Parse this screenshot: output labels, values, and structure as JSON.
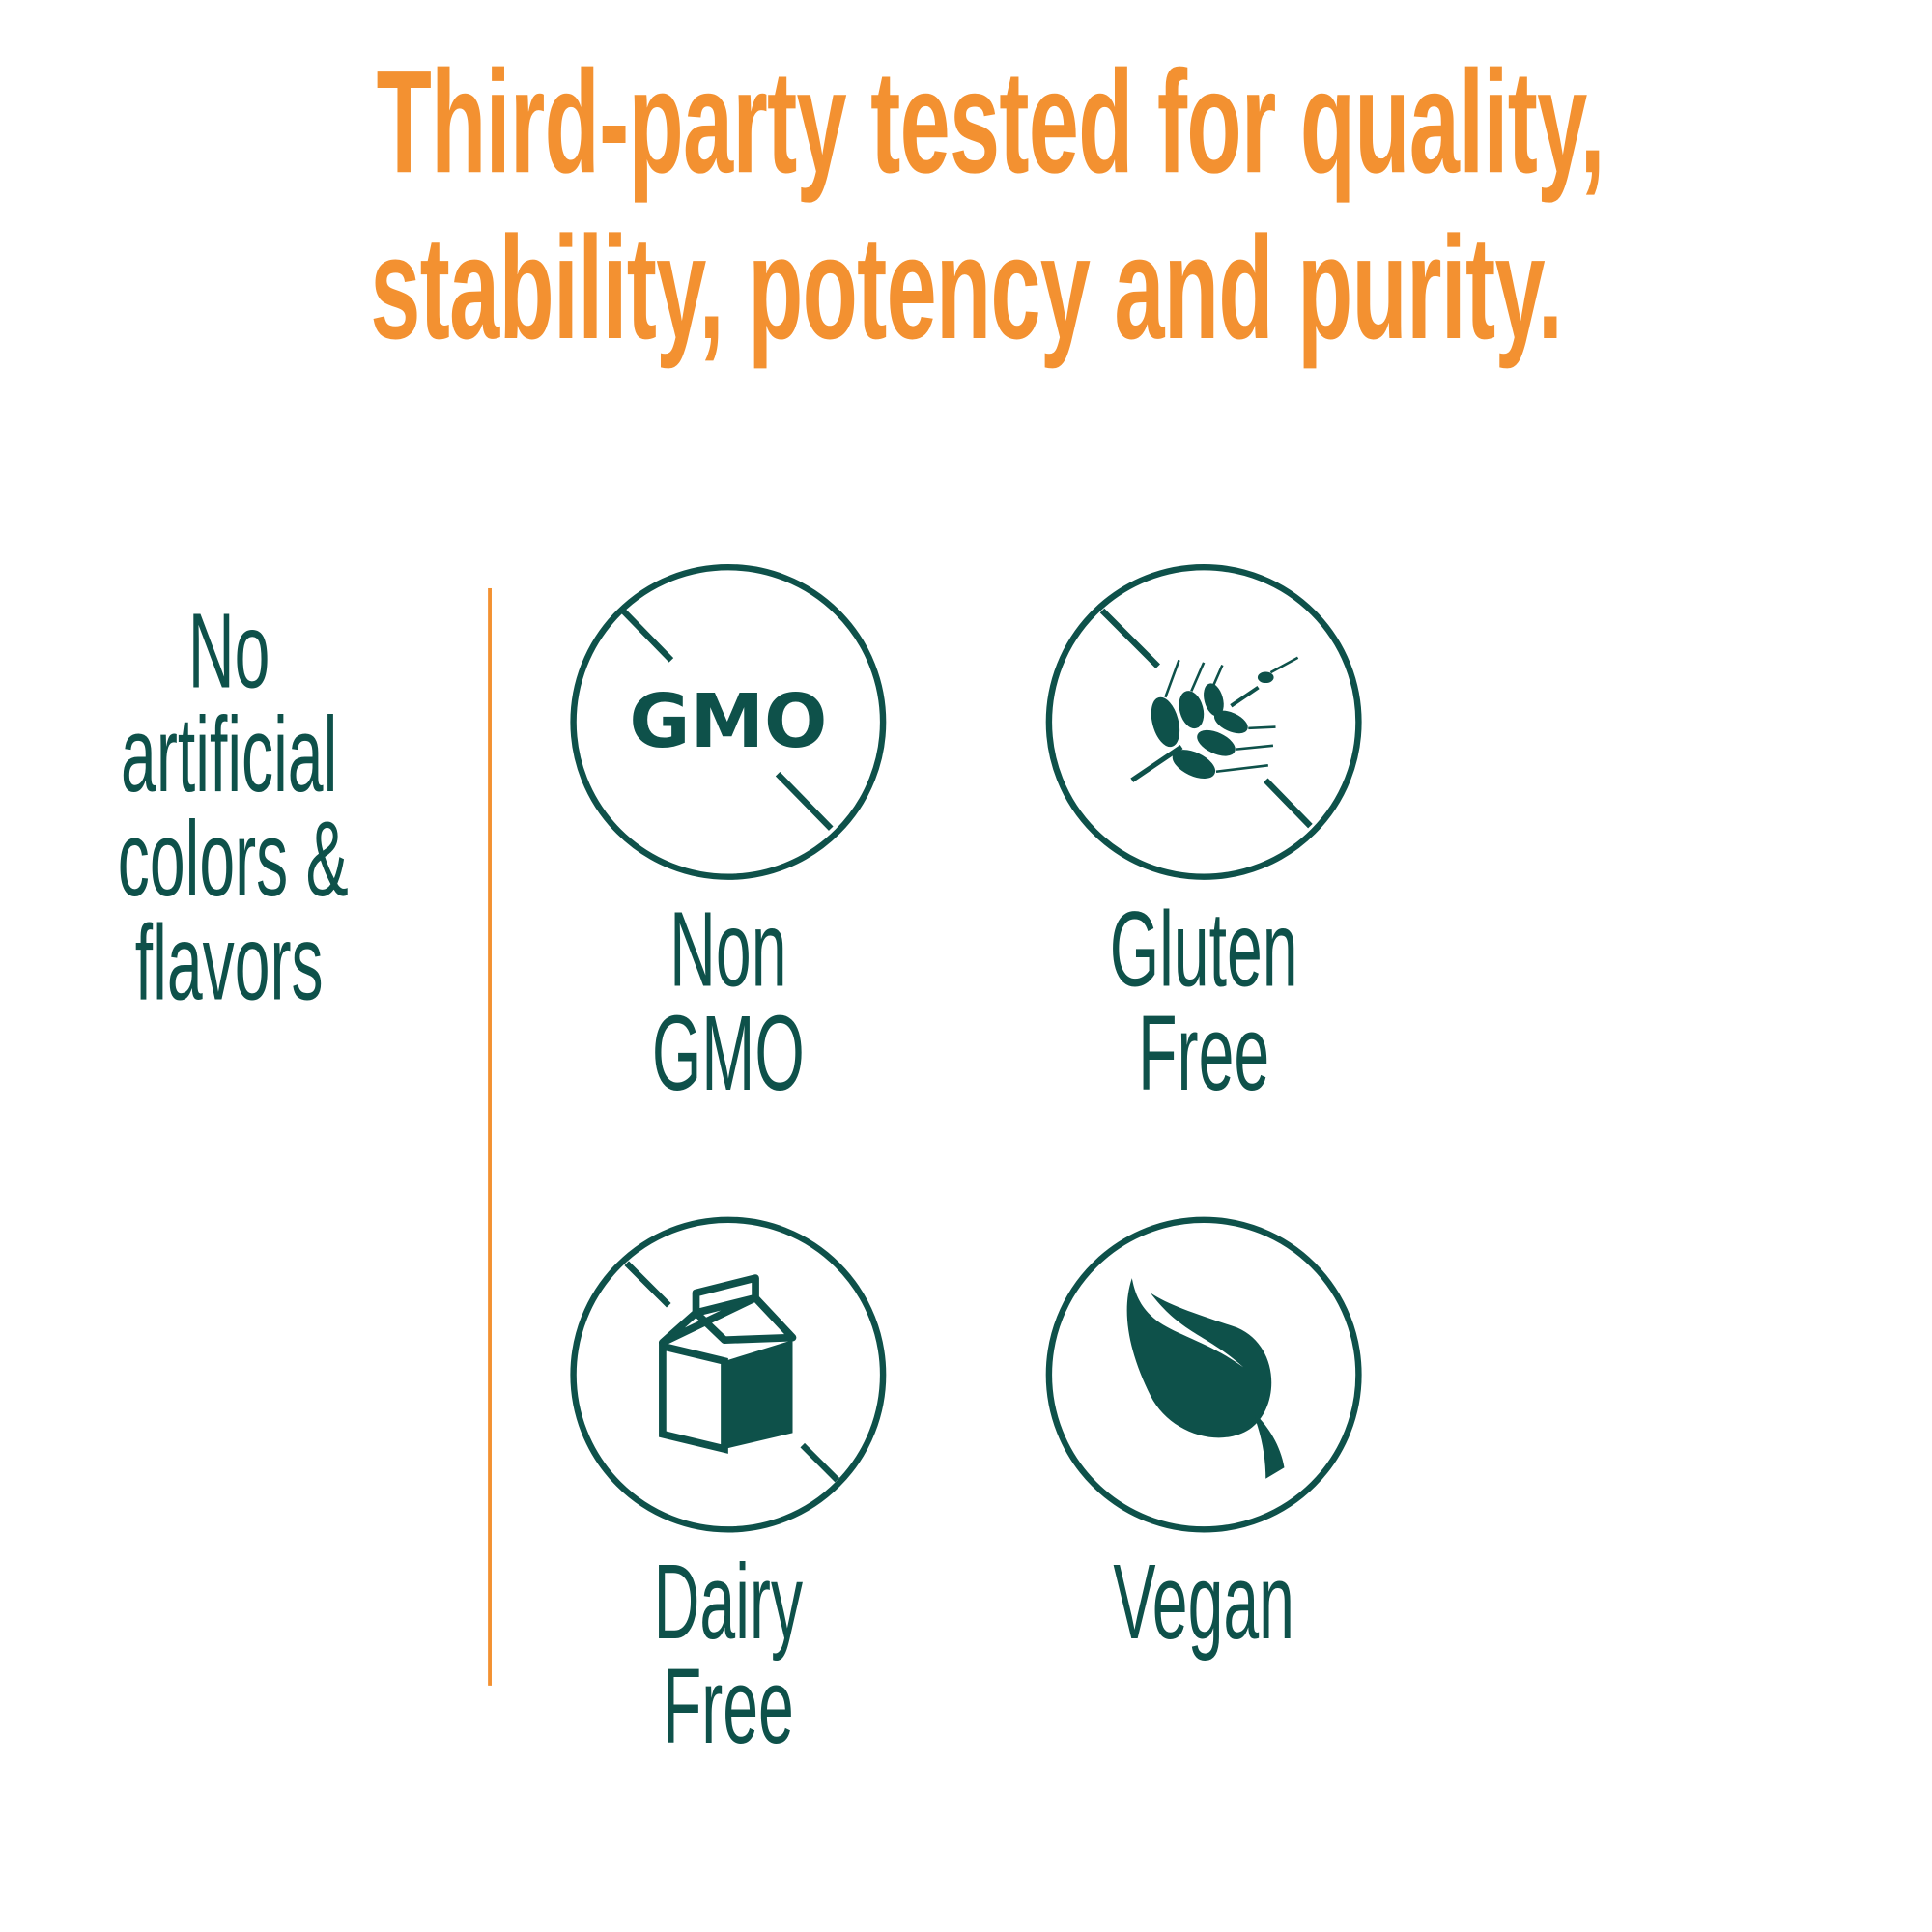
{
  "headline": {
    "line1": "Third-party tested for quality,",
    "line2": "stability, potency and purity."
  },
  "left_claim": {
    "lines": [
      "No",
      "artificial",
      "colors &",
      "flavors"
    ]
  },
  "badges": [
    {
      "icon": "no-gmo-icon",
      "icon_text": "GMO",
      "lines": [
        "Non",
        "GMO"
      ]
    },
    {
      "icon": "no-gluten-wheat-icon",
      "lines": [
        "Gluten",
        "Free"
      ]
    },
    {
      "icon": "no-dairy-milk-carton-icon",
      "lines": [
        "Dairy",
        "Free"
      ]
    },
    {
      "icon": "vegan-leaf-icon",
      "lines": [
        "Vegan"
      ]
    }
  ],
  "colors": {
    "accent": "#F39131",
    "primary": "#0E514A",
    "background": "#FFFFFF"
  }
}
